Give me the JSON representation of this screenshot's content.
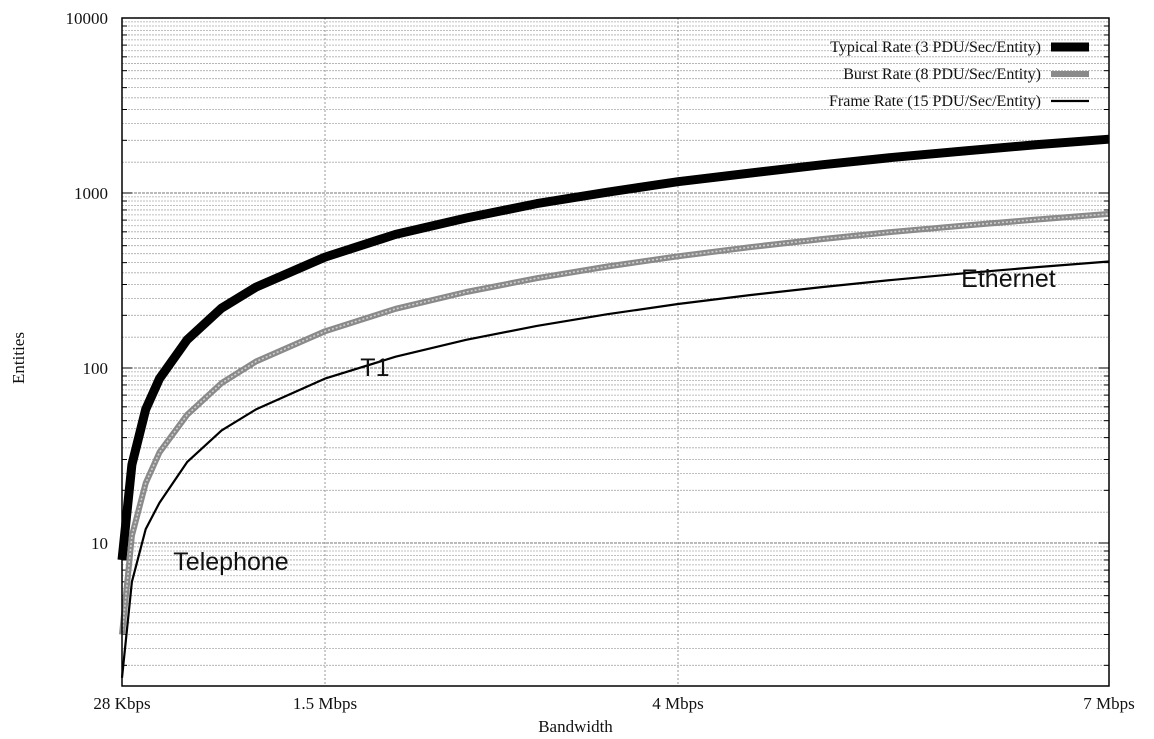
{
  "chart_data": {
    "type": "line",
    "title": "",
    "xlabel": "Bandwidth",
    "ylabel": "Entities",
    "x_ticks": [
      {
        "value": 28,
        "label": "28 Kbps"
      },
      {
        "value": 1500,
        "label": "1.5 Mbps"
      },
      {
        "value": 4000,
        "label": "4 Mbps"
      },
      {
        "value": 7000,
        "label": "7 Mbps"
      }
    ],
    "x_unit": "Kbps",
    "xlim": [
      28,
      7000
    ],
    "y_ticks": [
      {
        "value": 10,
        "label": "10"
      },
      {
        "value": 100,
        "label": "100"
      },
      {
        "value": 1000,
        "label": "1000"
      },
      {
        "value": 10000,
        "label": "10000"
      }
    ],
    "ylim": [
      2,
      10000
    ],
    "y_scale": "log",
    "grid": true,
    "legend_position": "top-right",
    "x": [
      28,
      100,
      200,
      300,
      500,
      750,
      1000,
      1500,
      2000,
      2500,
      3000,
      3500,
      4000,
      4500,
      5000,
      5500,
      6000,
      6500,
      7000
    ],
    "series": [
      {
        "name": "Typical Rate (3 PDU/Sec/Entity)",
        "color": "#000000",
        "style": "thick",
        "values": [
          8,
          28,
          58,
          87,
          145,
          220,
          290,
          430,
          580,
          720,
          870,
          1010,
          1160,
          1300,
          1450,
          1600,
          1740,
          1890,
          2030
        ]
      },
      {
        "name": "Burst Rate (8 PDU/Sec/Entity)",
        "color": "#8a8a8a",
        "style": "medium",
        "values": [
          3,
          11,
          22,
          33,
          54,
          82,
          109,
          162,
          218,
          272,
          326,
          380,
          435,
          490,
          545,
          600,
          652,
          706,
          760
        ]
      },
      {
        "name": "Frame Rate (15 PDU/Sec/Entity)",
        "color": "#000000",
        "style": "thin",
        "values": [
          1.7,
          6,
          12,
          17,
          29,
          44,
          58,
          87,
          116,
          145,
          174,
          203,
          232,
          261,
          290,
          319,
          348,
          377,
          406
        ]
      }
    ],
    "annotations": [
      {
        "text": "Telephone",
        "x": 400,
        "y": 7
      },
      {
        "text": "T1",
        "x": 1750,
        "y": 90
      },
      {
        "text": "Ethernet",
        "x": 6300,
        "y": 290
      }
    ]
  }
}
